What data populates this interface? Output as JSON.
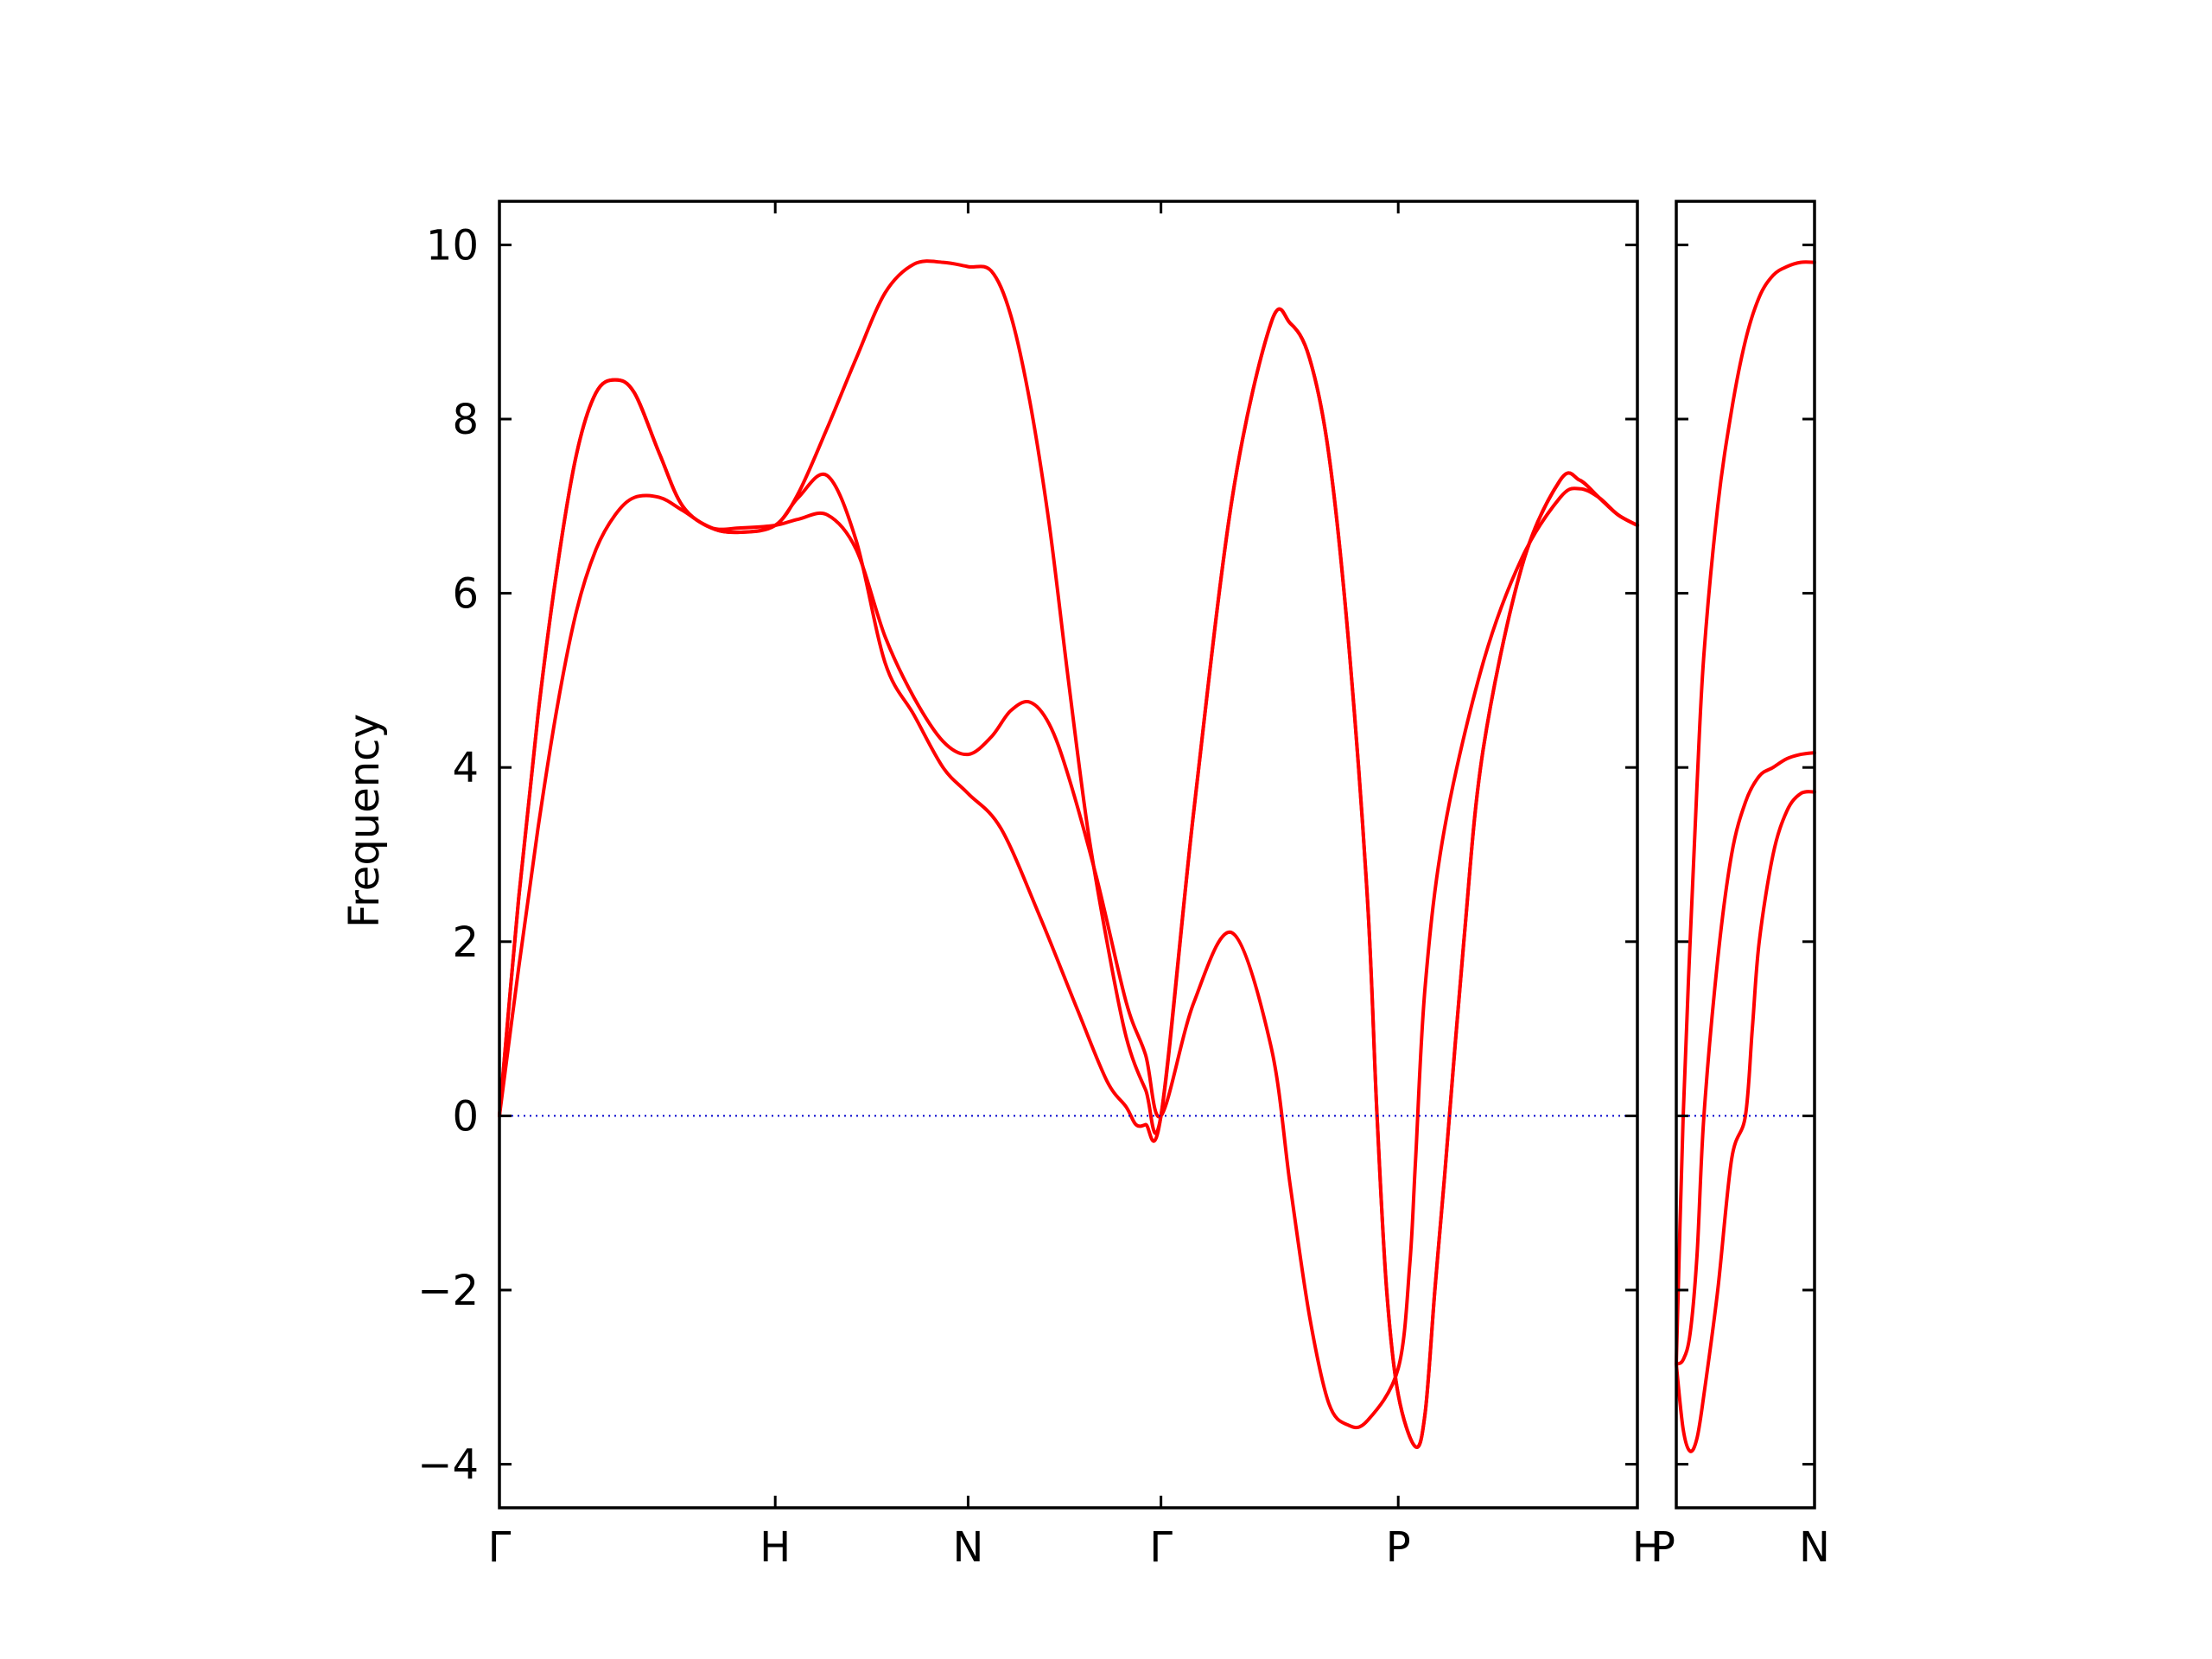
{
  "chart_data": {
    "type": "line",
    "ylabel": "Frequency",
    "xlabel": "",
    "ylim": [
      -4.5,
      10.5
    ],
    "yticks": [
      -4,
      -2,
      0,
      2,
      4,
      6,
      8,
      10
    ],
    "ytick_labels": [
      "−4",
      "−2",
      "0",
      "2",
      "4",
      "6",
      "8",
      "10"
    ],
    "grid": false,
    "colors": {
      "bands": "#ff0000",
      "zero_line": "#0000cc"
    },
    "panels": [
      {
        "name": "main",
        "xlim": [
          0,
          5.9
        ],
        "high_symmetry_points": [
          {
            "label": "Γ",
            "x": 0.0
          },
          {
            "label": "H",
            "x": 1.43
          },
          {
            "label": "N",
            "x": 2.43
          },
          {
            "label": "Γ",
            "x": 3.43
          },
          {
            "label": "P",
            "x": 4.66
          },
          {
            "label": "H",
            "x": 5.9
          }
        ],
        "series": [
          {
            "x": [
              0,
              0.1,
              0.2,
              0.3,
              0.4,
              0.5,
              0.6,
              0.7,
              0.83,
              0.95,
              1.1,
              1.25,
              1.43,
              1.55,
              1.7,
              1.85,
              2.0,
              2.15,
              2.3,
              2.43,
              2.55,
              2.65,
              2.75,
              2.85,
              2.95,
              3.1,
              3.25,
              3.35,
              3.43,
              3.6,
              3.8,
              4.0,
              4.1,
              4.2,
              4.3,
              4.4,
              4.5,
              4.66,
              4.72,
              4.75,
              4.8,
              4.9,
              5.1,
              5.3,
              5.5,
              5.6,
              5.7,
              5.8,
              5.9
            ],
            "y": [
              0,
              1.7,
              3.3,
              4.7,
              5.8,
              6.5,
              6.9,
              7.1,
              7.1,
              6.95,
              6.75,
              6.75,
              6.78,
              6.85,
              6.9,
              6.5,
              5.5,
              4.8,
              4.3,
              4.15,
              4.35,
              4.65,
              4.75,
              4.5,
              3.9,
              2.7,
              1.3,
              0.7,
              0,
              1.3,
              2.1,
              0.8,
              -0.8,
              -2.3,
              -3.3,
              -3.55,
              -3.5,
              -2.9,
              -1.7,
              -0.5,
              1.5,
              3.3,
              5.2,
              6.4,
              7.1,
              7.2,
              7.1,
              6.9,
              6.78
            ]
          },
          {
            "x": [
              0,
              0.1,
              0.2,
              0.3,
              0.4,
              0.5,
              0.6,
              0.7,
              0.83,
              0.95,
              1.1,
              1.25,
              1.43,
              1.55,
              1.7,
              1.85,
              2.0,
              2.15,
              2.3,
              2.43,
              2.6,
              2.8,
              3.0,
              3.15,
              3.25,
              3.3,
              3.35,
              3.43,
              3.6,
              3.8,
              4.0,
              4.1,
              4.2,
              4.3,
              4.4,
              4.5,
              4.55,
              4.6,
              4.66,
              4.75,
              4.8,
              4.85,
              4.9,
              5.0,
              5.1,
              5.3,
              5.5,
              5.6,
              5.7,
              5.8,
              5.9
            ],
            "y": [
              0,
              2.5,
              4.6,
              6.3,
              7.6,
              8.3,
              8.45,
              8.3,
              7.6,
              7.0,
              6.75,
              6.7,
              6.78,
              7.1,
              7.35,
              6.6,
              5.2,
              4.6,
              4.0,
              3.7,
              3.3,
              2.3,
              1.2,
              0.4,
              0.1,
              -0.1,
              -0.1,
              0,
              3.5,
              7.1,
              9.1,
              9.1,
              8.7,
              7.6,
              5.5,
              2.5,
              0,
              -2.0,
              -3.2,
              -3.8,
              -3.4,
              -2.0,
              -0.7,
              2.0,
              4.2,
              6.3,
              7.3,
              7.3,
              7.1,
              6.9,
              6.78
            ]
          },
          {
            "x": [
              0,
              0.1,
              0.2,
              0.3,
              0.4,
              0.5,
              0.6,
              0.7,
              0.83,
              0.95,
              1.1,
              1.25,
              1.43,
              1.55,
              1.7,
              1.85,
              2.0,
              2.15,
              2.3,
              2.43,
              2.55,
              2.65,
              2.75,
              2.85,
              2.95,
              3.05,
              3.15,
              3.25,
              3.35,
              3.43,
              3.6,
              3.8,
              4.0,
              4.1,
              4.2,
              4.3,
              4.4,
              4.5,
              4.55,
              4.6,
              4.66,
              4.75,
              4.8,
              4.85,
              4.9,
              5.0,
              5.1,
              5.3,
              5.5,
              5.6,
              5.7,
              5.8,
              5.9
            ],
            "y": [
              0,
              2.5,
              4.6,
              6.3,
              7.6,
              8.3,
              8.45,
              8.3,
              7.6,
              7.0,
              6.75,
              6.7,
              6.78,
              7.15,
              7.9,
              8.7,
              9.45,
              9.78,
              9.8,
              9.75,
              9.7,
              9.2,
              8.2,
              6.8,
              5.0,
              3.3,
              2.0,
              0.9,
              0.3,
              0,
              3.5,
              7.1,
              9.1,
              9.1,
              8.7,
              7.6,
              5.5,
              2.5,
              0,
              -2.0,
              -3.2,
              -3.8,
              -3.4,
              -2.0,
              -0.7,
              2.0,
              4.2,
              6.3,
              7.3,
              7.3,
              7.1,
              6.9,
              6.78
            ]
          }
        ]
      },
      {
        "name": "right",
        "xlim": [
          0,
          1.0
        ],
        "high_symmetry_points": [
          {
            "label": "P",
            "x": 0.0
          },
          {
            "label": "N",
            "x": 1.0
          }
        ],
        "series": [
          {
            "x": [
              0,
              0.05,
              0.1,
              0.15,
              0.2,
              0.3,
              0.4,
              0.5,
              0.6,
              0.7,
              0.8,
              0.9,
              1.0
            ],
            "y": [
              -2.85,
              -2.8,
              -2.5,
              -1.6,
              0,
              1.8,
              3.0,
              3.6,
              3.9,
              4.0,
              4.1,
              4.15,
              4.17
            ],
            "segment": "optical-lower"
          },
          {
            "x": [
              0,
              0.05,
              0.1,
              0.15,
              0.2,
              0.3,
              0.4,
              0.5,
              0.55,
              0.6,
              0.7,
              0.8,
              0.9,
              1.0
            ],
            "y": [
              -2.85,
              -3.6,
              -3.85,
              -3.7,
              -3.2,
              -2.0,
              -0.5,
              0,
              1.0,
              2.0,
              3.0,
              3.5,
              3.7,
              3.72
            ],
            "segment": "optical-upper"
          },
          {
            "x": [
              0,
              0.05,
              0.1,
              0.15,
              0.2,
              0.3,
              0.4,
              0.5,
              0.6,
              0.7,
              0.8,
              0.9,
              1.0
            ],
            "y": [
              -2.85,
              0,
              2.0,
              3.8,
              5.3,
              7.0,
              8.1,
              8.9,
              9.4,
              9.65,
              9.75,
              9.8,
              9.8
            ],
            "segment": "acoustic"
          }
        ]
      }
    ]
  }
}
